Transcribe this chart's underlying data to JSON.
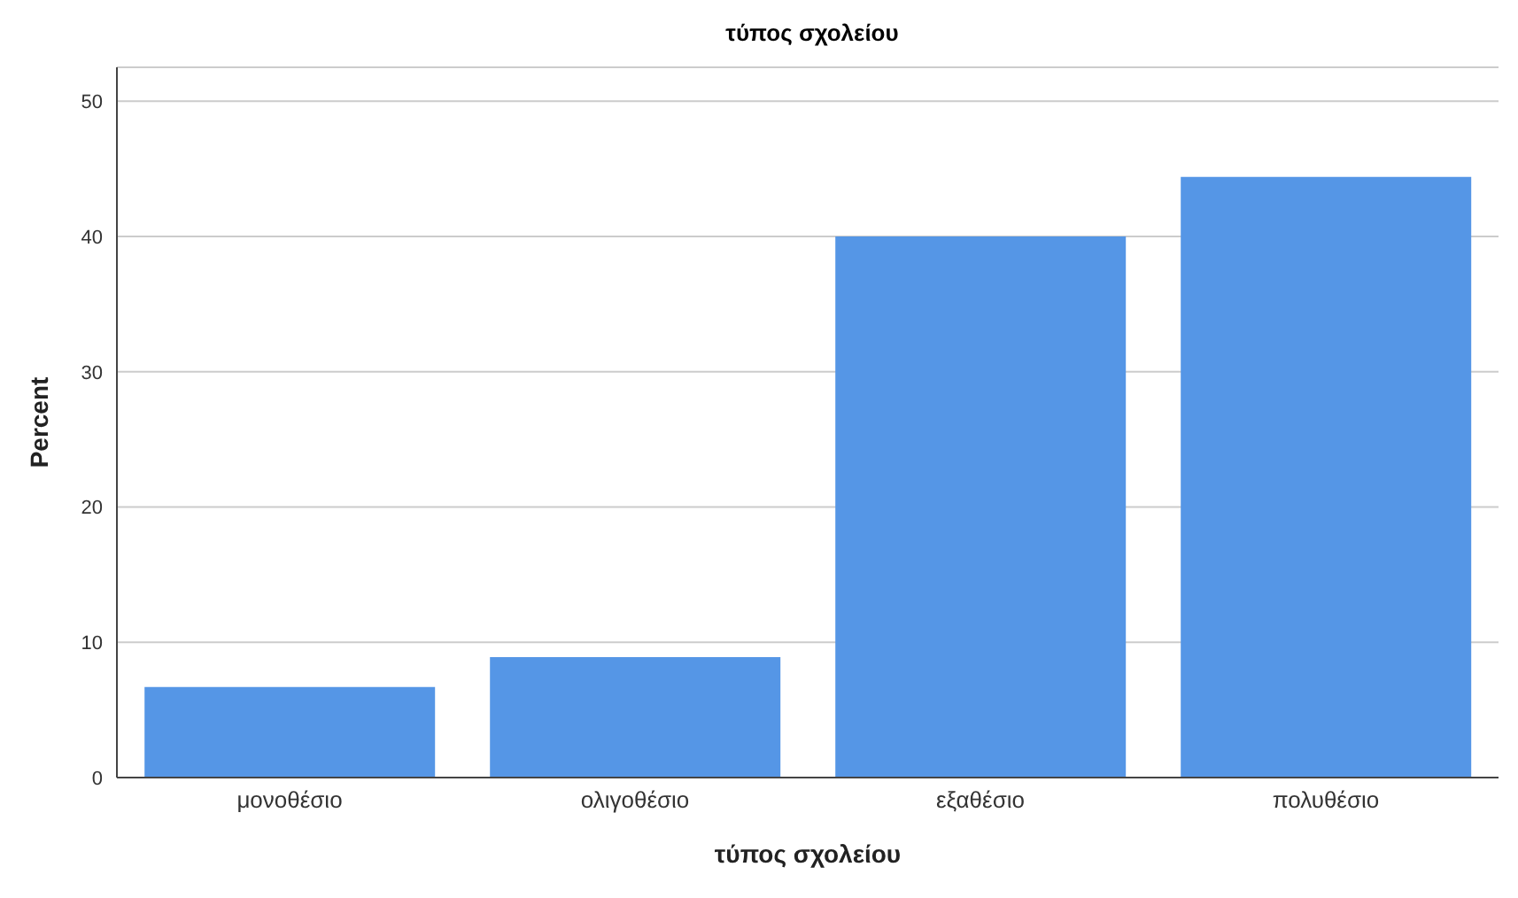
{
  "chart_data": {
    "type": "bar",
    "title": "τύπος σχολείου",
    "xlabel": "τύπος σχολείου",
    "ylabel": "Percent",
    "categories": [
      "μονοθέσιο",
      "ολιγοθέσιο",
      "εξαθέσιο",
      "πολυθέσιο"
    ],
    "values": [
      6.7,
      8.9,
      40.0,
      44.4
    ],
    "color": "#5596e6",
    "ylim": [
      0,
      52.5
    ],
    "yticks": [
      0,
      10,
      20,
      30,
      40,
      50
    ],
    "grid": "y"
  }
}
